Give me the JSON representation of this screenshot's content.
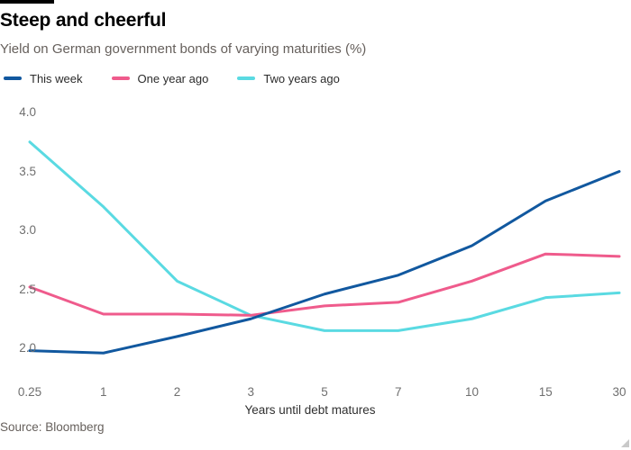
{
  "header": {
    "title": "Steep and cheerful",
    "subtitle": "Yield on German government bonds of varying maturities (%)"
  },
  "legend": [
    {
      "label": "This week",
      "color": "#11589f"
    },
    {
      "label": "One year ago",
      "color": "#ef5b8c"
    },
    {
      "label": "Two years ago",
      "color": "#5adae2"
    }
  ],
  "chart_data": {
    "type": "line",
    "title": "Steep and cheerful",
    "subtitle": "Yield on German government bonds of varying maturities (%)",
    "categories": [
      "0.25",
      "1",
      "2",
      "3",
      "5",
      "7",
      "10",
      "15",
      "30"
    ],
    "x_spacing": "categorical-even",
    "series": [
      {
        "name": "This week",
        "color": "#11589f",
        "values": [
          1.98,
          1.96,
          2.1,
          2.25,
          2.46,
          2.62,
          2.87,
          3.25,
          3.5
        ]
      },
      {
        "name": "One year ago",
        "color": "#ef5b8c",
        "values": [
          2.52,
          2.29,
          2.29,
          2.28,
          2.36,
          2.39,
          2.57,
          2.8,
          2.78
        ]
      },
      {
        "name": "Two years ago",
        "color": "#5adae2",
        "values": [
          3.75,
          3.2,
          2.57,
          2.28,
          2.15,
          2.15,
          2.25,
          2.43,
          2.47
        ]
      }
    ],
    "xlabel": "Years until debt matures",
    "ylabel": "",
    "yticks": [
      "4.0",
      "3.5",
      "3.0",
      "2.5",
      "2.0"
    ],
    "ytick_values": [
      4.0,
      3.5,
      3.0,
      2.5,
      2.0
    ],
    "ylim": [
      1.9,
      4.05
    ],
    "grid": false,
    "legend_position": "top-left"
  },
  "footer": {
    "source": "Source: Bloomberg"
  }
}
